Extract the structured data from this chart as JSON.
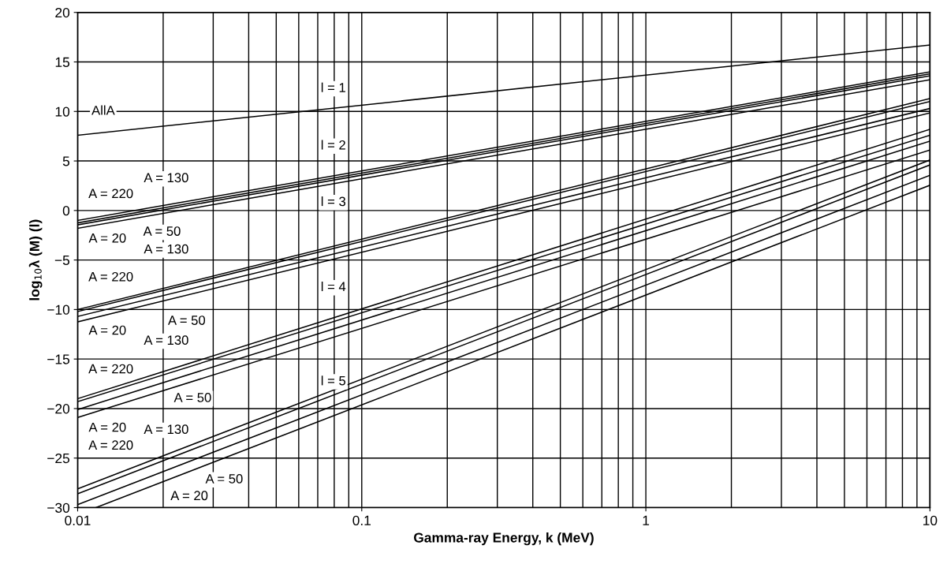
{
  "chart_data": {
    "type": "line",
    "xlabel": "Gamma-ray Energy, k (MeV)",
    "ylabel": "log$_{10}$λ (M) (l)",
    "log": "x",
    "grid": true,
    "legend": false,
    "marker": "none",
    "line_style": "solid",
    "xlim": [
      0.01,
      10
    ],
    "xticks": [
      0.01,
      0.1,
      1,
      10
    ],
    "ylim": [
      -30,
      20
    ],
    "yticks": [
      {
        "value": -30,
        "label": "−30"
      },
      {
        "value": -25,
        "label": "−25"
      },
      {
        "value": -20,
        "label": "−20"
      },
      {
        "value": -15,
        "label": "−15"
      },
      {
        "value": -10,
        "label": "−10"
      },
      {
        "value": -5,
        "label": "−5"
      },
      0,
      5,
      10,
      15,
      20
    ],
    "x": [
      0.01,
      10
    ],
    "series": [
      {
        "color": "#000000",
        "values": [
          7.6,
          16.7
        ]
      },
      {
        "color": "#000000",
        "values": [
          -1.0,
          14.0
        ]
      },
      {
        "color": "#000000",
        "values": [
          -1.25,
          13.8
        ]
      },
      {
        "color": "#000000",
        "values": [
          -1.45,
          13.6
        ]
      },
      {
        "color": "#000000",
        "values": [
          -1.8,
          13.2
        ]
      },
      {
        "color": "#000000",
        "values": [
          -10.0,
          11.3
        ]
      },
      {
        "color": "#000000",
        "values": [
          -10.2,
          11.0
        ]
      },
      {
        "color": "#000000",
        "values": [
          -10.7,
          10.3
        ]
      },
      {
        "color": "#000000",
        "values": [
          -11.25,
          9.85
        ]
      },
      {
        "color": "#000000",
        "values": [
          -19.0,
          8.2
        ]
      },
      {
        "color": "#000000",
        "values": [
          -19.3,
          7.6
        ]
      },
      {
        "color": "#000000",
        "values": [
          -20.1,
          7.0
        ]
      },
      {
        "color": "#000000",
        "values": [
          -20.9,
          6.1
        ]
      },
      {
        "color": "#000000",
        "values": [
          -28.1,
          5.1
        ]
      },
      {
        "color": "#000000",
        "values": [
          -28.6,
          4.6
        ]
      },
      {
        "color": "#000000",
        "values": [
          -29.7,
          3.55
        ]
      },
      {
        "color": "#000000",
        "x": [
          0.0116,
          10
        ],
        "values": [
          -30,
          2.55
        ]
      }
    ],
    "annotations": [
      "AllA",
      "l = 1",
      "l = 2",
      "l = 3",
      "l = 4",
      "l = 5",
      "A = 130",
      "A = 220",
      "A = 50",
      "A = 20",
      "A = 130",
      "A = 220",
      "A = 50",
      "A = 20",
      "A = 130",
      "A = 220",
      "A = 50",
      "A = 20",
      "A = 130",
      "A = 220",
      "A = 50",
      "A = 20"
    ]
  }
}
